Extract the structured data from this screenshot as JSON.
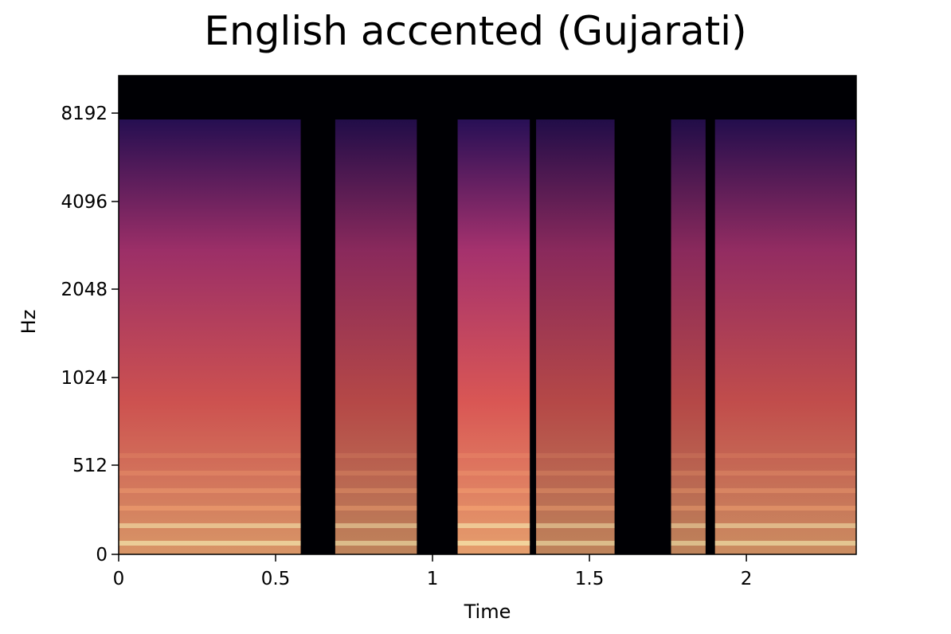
{
  "chart_data": {
    "type": "heatmap",
    "title": "English accented (Gujarati)",
    "xlabel": "Time",
    "ylabel": "Hz",
    "xlim": [
      0,
      2.35
    ],
    "x_ticks": [
      0,
      0.5,
      1,
      1.5,
      2
    ],
    "x_tick_labels": [
      "0",
      "0.5",
      "1",
      "1.5",
      "2"
    ],
    "y_scale": "log (mel-like)",
    "y_ticks": [
      0,
      512,
      1024,
      2048,
      4096,
      8192
    ],
    "y_tick_labels": [
      "0",
      "512",
      "1024",
      "2048",
      "4096",
      "8192"
    ],
    "colormap": "magma",
    "colors": [
      "#000004",
      "#2c115f",
      "#721f81",
      "#b73779",
      "#f1605d",
      "#feb078",
      "#fcfdbf"
    ],
    "grid": false,
    "speech_segments": [
      {
        "start": 0.0,
        "end": 0.58,
        "level": 0.85
      },
      {
        "start": 0.69,
        "end": 0.95,
        "level": 0.75
      },
      {
        "start": 1.08,
        "end": 1.31,
        "level": 0.9
      },
      {
        "start": 1.33,
        "end": 1.58,
        "level": 0.75
      },
      {
        "start": 1.76,
        "end": 1.87,
        "level": 0.75
      },
      {
        "start": 1.9,
        "end": 2.35,
        "level": 0.8
      }
    ]
  }
}
